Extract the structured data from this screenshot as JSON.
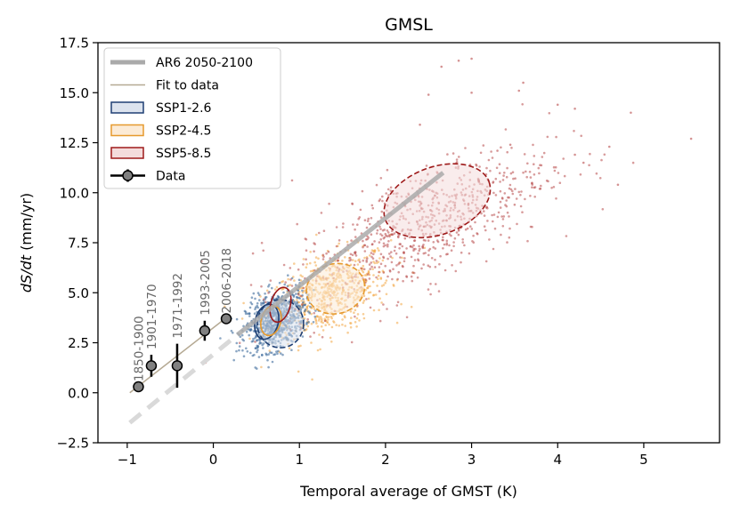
{
  "chart_data": {
    "type": "scatter",
    "title": "GMSL",
    "xlabel": "Temporal average of GMST (K)",
    "ylabel_italic": "dS/dt",
    "ylabel_rest": " (mm/yr)",
    "xlim": [
      -1.34,
      5.88
    ],
    "ylim": [
      -2.5,
      17.5
    ],
    "xticks": [
      -1,
      0,
      1,
      2,
      3,
      4,
      5
    ],
    "xtick_labels": [
      "−1",
      "0",
      "1",
      "2",
      "3",
      "4",
      "5"
    ],
    "yticks": [
      -2.5,
      0.0,
      2.5,
      5.0,
      7.5,
      10.0,
      12.5,
      15.0,
      17.5
    ],
    "ytick_labels": [
      "−2.5",
      "0.0",
      "2.5",
      "5.0",
      "7.5",
      "10.0",
      "12.5",
      "15.0",
      "17.5"
    ],
    "grid": false,
    "legend_position": "top-left",
    "legend": [
      {
        "label": "AR6 2050-2100",
        "kind": "thick-line",
        "color": "#aaaaaa"
      },
      {
        "label": "Fit to data",
        "kind": "thin-line",
        "color": "#b5a993"
      },
      {
        "label": "SSP1-2.6",
        "kind": "patch",
        "edge": "#1f3f73",
        "face": "#dce3ee"
      },
      {
        "label": "SSP2-4.5",
        "kind": "patch",
        "edge": "#e69a2e",
        "face": "#fcebd6"
      },
      {
        "label": "SSP5-8.5",
        "kind": "patch",
        "edge": "#9e1a1a",
        "face": "#f4dcdc"
      },
      {
        "label": "Data",
        "kind": "errorbar-marker",
        "color": "#000000",
        "face": "#808080"
      }
    ],
    "observations": [
      {
        "period": "1850-1900",
        "x": -0.87,
        "y": 0.3,
        "err": 0.0
      },
      {
        "period": "1901-1970",
        "x": -0.72,
        "y": 1.35,
        "err": 0.55
      },
      {
        "period": "1971-1992",
        "x": -0.42,
        "y": 1.35,
        "err": 1.1
      },
      {
        "period": "1993-2005",
        "x": -0.1,
        "y": 3.1,
        "err": 0.5
      },
      {
        "period": "2006-2018",
        "x": 0.15,
        "y": 3.7,
        "err": 0.0
      }
    ],
    "fit_line": {
      "x": [
        -0.97,
        0.15
      ],
      "y": [
        0.0,
        3.75
      ],
      "color": "#b5a993"
    },
    "ar6_dashed": {
      "x": [
        -0.97,
        0.28
      ],
      "y": [
        -1.5,
        2.9
      ],
      "color": "#d9d9d9"
    },
    "ar6_solid": {
      "x": [
        0.28,
        2.67
      ],
      "y": [
        2.9,
        11.0
      ],
      "color": "#aaaaaa"
    },
    "scenarios": [
      {
        "name": "SSP1-2.6",
        "color": "#2e5f94",
        "edge": "#1f3f73",
        "face": "#dce3ee",
        "center": [
          0.72,
          3.6
        ],
        "sx": 0.17,
        "sy": 0.75,
        "corr": 0.35,
        "n": 800,
        "ellipses": [
          {
            "cx": 0.78,
            "cy": 3.45,
            "rx": 0.28,
            "ry": 1.1,
            "angle": 0,
            "dashed": true
          },
          {
            "cx": 0.62,
            "cy": 3.55,
            "rx": 0.14,
            "ry": 0.8,
            "angle": 0,
            "dashed": false
          }
        ]
      },
      {
        "name": "SSP2-4.5",
        "color": "#f2a541",
        "edge": "#e69a2e",
        "face": "#fcebd6",
        "center": [
          1.35,
          4.9
        ],
        "sx": 0.35,
        "sy": 1.1,
        "corr": 0.45,
        "n": 650,
        "ellipses": [
          {
            "cx": 1.42,
            "cy": 5.2,
            "rx": 0.33,
            "ry": 1.3,
            "angle": 0,
            "dashed": true
          },
          {
            "cx": 0.67,
            "cy": 3.6,
            "rx": 0.12,
            "ry": 0.65,
            "angle": 0,
            "dashed": false
          }
        ]
      },
      {
        "name": "SSP5-8.5",
        "color": "#b84a4a",
        "edge": "#9e1a1a",
        "face": "#f4dcdc",
        "center": [
          2.4,
          8.3
        ],
        "sx": 0.75,
        "sy": 2.0,
        "corr": 0.7,
        "n": 800,
        "ellipses": [
          {
            "cx": 2.6,
            "cy": 9.6,
            "rx": 0.62,
            "ry": 1.7,
            "angle": 0,
            "dashed": true
          },
          {
            "cx": 0.78,
            "cy": 4.4,
            "rx": 0.14,
            "ry": 0.7,
            "angle": 0,
            "dashed": false
          }
        ]
      }
    ],
    "outliers_ssp585": [
      [
        2.85,
        16.6
      ],
      [
        3.0,
        16.7
      ],
      [
        2.65,
        16.3
      ],
      [
        3.0,
        15.0
      ],
      [
        3.55,
        15.1
      ],
      [
        3.6,
        15.5
      ],
      [
        4.0,
        14.4
      ],
      [
        4.2,
        14.2
      ],
      [
        4.85,
        14.0
      ],
      [
        5.55,
        12.7
      ],
      [
        4.6,
        12.3
      ],
      [
        3.45,
        12.4
      ],
      [
        3.3,
        12.1
      ],
      [
        4.2,
        11.9
      ],
      [
        4.7,
        10.4
      ],
      [
        3.8,
        10.2
      ],
      [
        3.5,
        9.4
      ],
      [
        4.3,
        11.5
      ],
      [
        2.5,
        14.9
      ],
      [
        2.4,
        13.4
      ]
    ]
  }
}
